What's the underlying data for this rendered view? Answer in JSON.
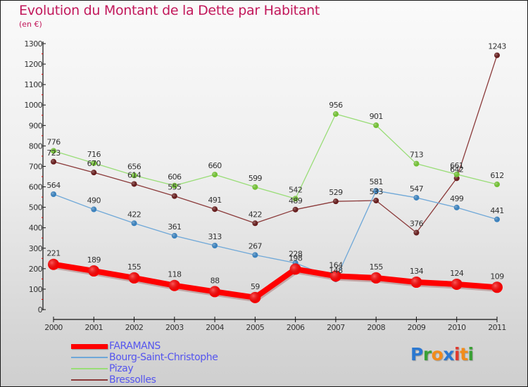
{
  "title": "Evolution du Montant de la Dette par Habitant",
  "subtitle": "(en €)",
  "logo": {
    "text": "Proxiti",
    "letters": [
      {
        "char": "P",
        "color": "#2b78d0"
      },
      {
        "char": "r",
        "color": "#3aa035"
      },
      {
        "char": "o",
        "color": "#f28c1b"
      },
      {
        "char": "x",
        "color": "#2b78d0"
      },
      {
        "char": "i",
        "color": "#e03a2e"
      },
      {
        "char": "t",
        "color": "#f28c1b"
      },
      {
        "char": "i",
        "color": "#3aa035"
      }
    ]
  },
  "chart_data": {
    "type": "line",
    "title": "Evolution du Montant de la Dette par Habitant",
    "subtitle": "(en €)",
    "xlabel": "",
    "ylabel": "",
    "x": [
      "2000",
      "2001",
      "2002",
      "2003",
      "2004",
      "2005",
      "2006",
      "2007",
      "2008",
      "2009",
      "2010",
      "2011"
    ],
    "ylim": [
      0,
      1300
    ],
    "yticks": [
      0,
      100,
      200,
      300,
      400,
      500,
      600,
      700,
      800,
      900,
      1000,
      1100,
      1200,
      1300
    ],
    "grid": false,
    "legend_position": "bottom-left",
    "series": [
      {
        "name": "FARAMANS",
        "color": "#ff0000",
        "key": "faramans",
        "values": [
          221,
          189,
          155,
          118,
          88,
          59,
          198,
          164,
          155,
          134,
          124,
          109
        ]
      },
      {
        "name": "Bourg-Saint-Christophe",
        "color": "#6fa8d8",
        "key": "bourg",
        "values": [
          564,
          490,
          422,
          361,
          313,
          267,
          228,
          148,
          581,
          547,
          499,
          441
        ]
      },
      {
        "name": "Pizay",
        "color": "#99dd77",
        "key": "pizay",
        "values": [
          776,
          716,
          656,
          606,
          660,
          599,
          542,
          956,
          901,
          713,
          661,
          612
        ]
      },
      {
        "name": "Bressolles",
        "color": "#8b3a3a",
        "key": "bressolles",
        "values": [
          723,
          670,
          614,
          555,
          491,
          422,
          489,
          529,
          533,
          376,
          642,
          1243
        ]
      }
    ]
  }
}
